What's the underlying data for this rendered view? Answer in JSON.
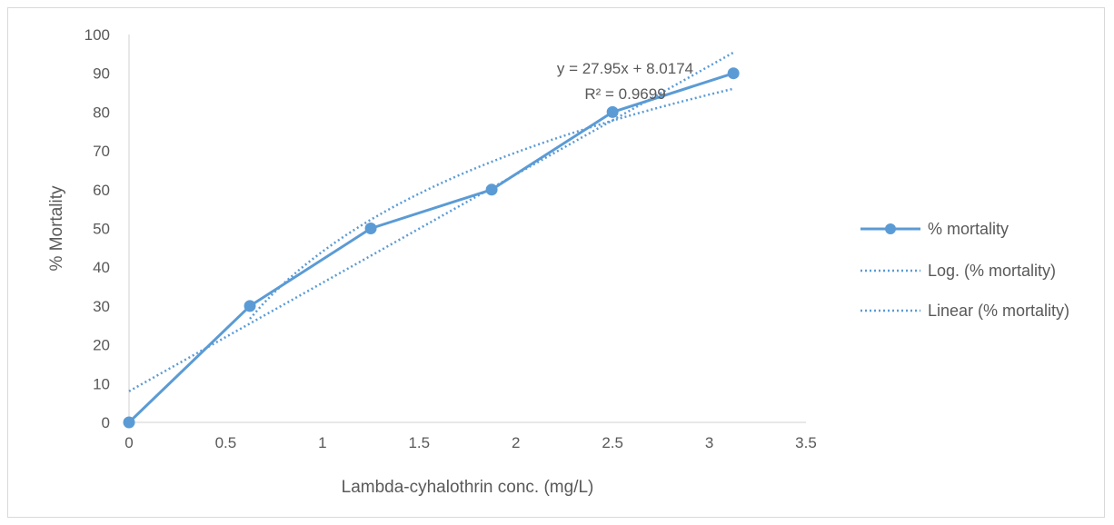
{
  "chart_data": {
    "type": "line",
    "title": "",
    "xlabel": "Lambda-cyhalothrin conc. (mg/L)",
    "ylabel": "% Mortality",
    "xlim": [
      0,
      3.5
    ],
    "ylim": [
      0,
      100
    ],
    "x_ticks": [
      "0",
      "0.5",
      "1",
      "1.5",
      "2",
      "2.5",
      "3",
      "3.5"
    ],
    "y_ticks": [
      "0",
      "10",
      "20",
      "30",
      "40",
      "50",
      "60",
      "70",
      "80",
      "90",
      "100"
    ],
    "grid": false,
    "legend_position": "right",
    "series": [
      {
        "name": "% mortality",
        "color": "#5b9bd5",
        "marker": "circle",
        "x": [
          0,
          0.625,
          1.25,
          1.875,
          2.5,
          3.125
        ],
        "values": [
          0,
          30,
          50,
          60,
          80,
          90
        ]
      }
    ],
    "trendlines": [
      {
        "name": "Log. (% mortality)",
        "type": "logarithmic",
        "style": "dotted",
        "color": "#5b9bd5"
      },
      {
        "name": "Linear (% mortality)",
        "type": "linear",
        "style": "dotted",
        "color": "#5b9bd5",
        "slope": 27.95,
        "intercept": 8.0174
      }
    ],
    "annotation": {
      "equation": "y = 27.95x + 8.0174",
      "r_squared": "R² = 0.9699"
    }
  }
}
